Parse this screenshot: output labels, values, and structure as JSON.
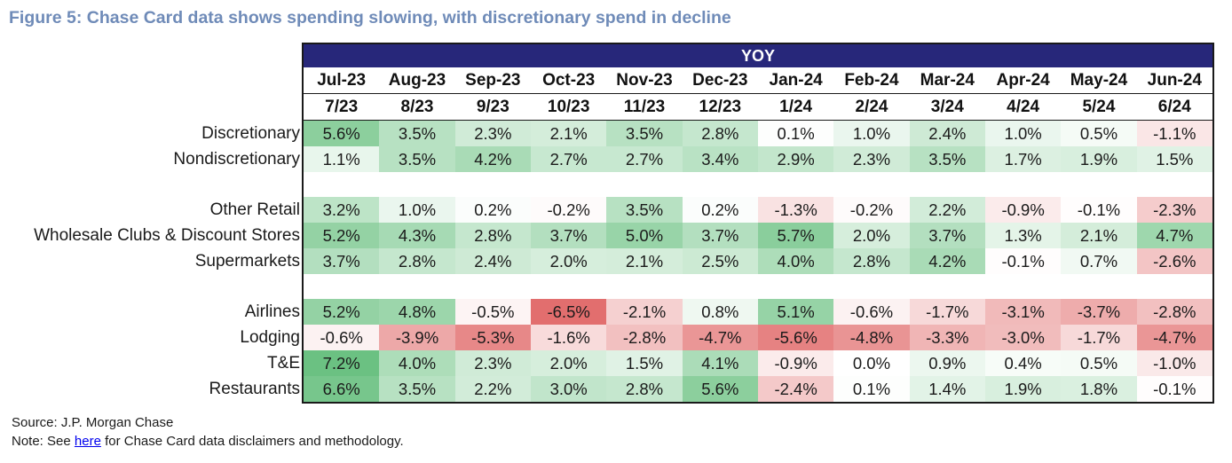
{
  "title": "Figure 5: Chase Card data shows spending slowing, with discretionary spend in decline",
  "chart_data": {
    "type": "table",
    "group_header": "YOY",
    "months": [
      "Jul-23",
      "Aug-23",
      "Sep-23",
      "Oct-23",
      "Nov-23",
      "Dec-23",
      "Jan-24",
      "Feb-24",
      "Mar-24",
      "Apr-24",
      "May-24",
      "Jun-24"
    ],
    "short_months": [
      "7/23",
      "8/23",
      "9/23",
      "10/23",
      "11/23",
      "12/23",
      "1/24",
      "2/24",
      "3/24",
      "4/24",
      "5/24",
      "6/24"
    ],
    "unit": "%",
    "groups": [
      {
        "rows": [
          {
            "label": "Discretionary",
            "values": [
              5.6,
              3.5,
              2.3,
              2.1,
              3.5,
              2.8,
              0.1,
              1.0,
              2.4,
              1.0,
              0.5,
              -1.1
            ]
          },
          {
            "label": "Nondiscretionary",
            "values": [
              1.1,
              3.5,
              4.2,
              2.7,
              2.7,
              3.4,
              2.9,
              2.3,
              3.5,
              1.7,
              1.9,
              1.5
            ]
          }
        ]
      },
      {
        "rows": [
          {
            "label": "Other Retail",
            "values": [
              3.2,
              1.0,
              0.2,
              -0.2,
              3.5,
              0.2,
              -1.3,
              -0.2,
              2.2,
              -0.9,
              -0.1,
              -2.3
            ]
          },
          {
            "label": "Wholesale Clubs & Discount Stores",
            "values": [
              5.2,
              4.3,
              2.8,
              3.7,
              5.0,
              3.7,
              5.7,
              2.0,
              3.7,
              1.3,
              2.1,
              4.7
            ]
          },
          {
            "label": "Supermarkets",
            "values": [
              3.7,
              2.8,
              2.4,
              2.0,
              2.1,
              2.5,
              4.0,
              2.8,
              4.2,
              -0.1,
              0.7,
              -2.6
            ]
          }
        ]
      },
      {
        "rows": [
          {
            "label": "Airlines",
            "values": [
              5.2,
              4.8,
              -0.5,
              -6.5,
              -2.1,
              0.8,
              5.1,
              -0.6,
              -1.7,
              -3.1,
              -3.7,
              -2.8
            ]
          },
          {
            "label": "Lodging",
            "values": [
              -0.6,
              -3.9,
              -5.3,
              -1.6,
              -2.8,
              -4.7,
              -5.6,
              -4.8,
              -3.3,
              -3.0,
              -1.7,
              -4.7
            ]
          },
          {
            "label": "T&E",
            "values": [
              7.2,
              4.0,
              2.3,
              2.0,
              1.5,
              4.1,
              -0.9,
              0.0,
              0.9,
              0.4,
              0.5,
              -1.0
            ]
          },
          {
            "label": "Restaurants",
            "values": [
              6.6,
              3.5,
              2.2,
              3.0,
              2.8,
              5.6,
              -2.4,
              0.1,
              1.4,
              1.9,
              1.8,
              -0.1
            ]
          }
        ]
      }
    ],
    "colors": {
      "positive": "#63be7b",
      "negative": "#e06666",
      "neutral": "#ffffff",
      "header_bg": "#27277a"
    }
  },
  "footer": {
    "source": "Source: J.P. Morgan Chase",
    "note_prefix": "Note: See ",
    "note_link": "here",
    "note_suffix": " for Chase Card data disclaimers and methodology."
  }
}
